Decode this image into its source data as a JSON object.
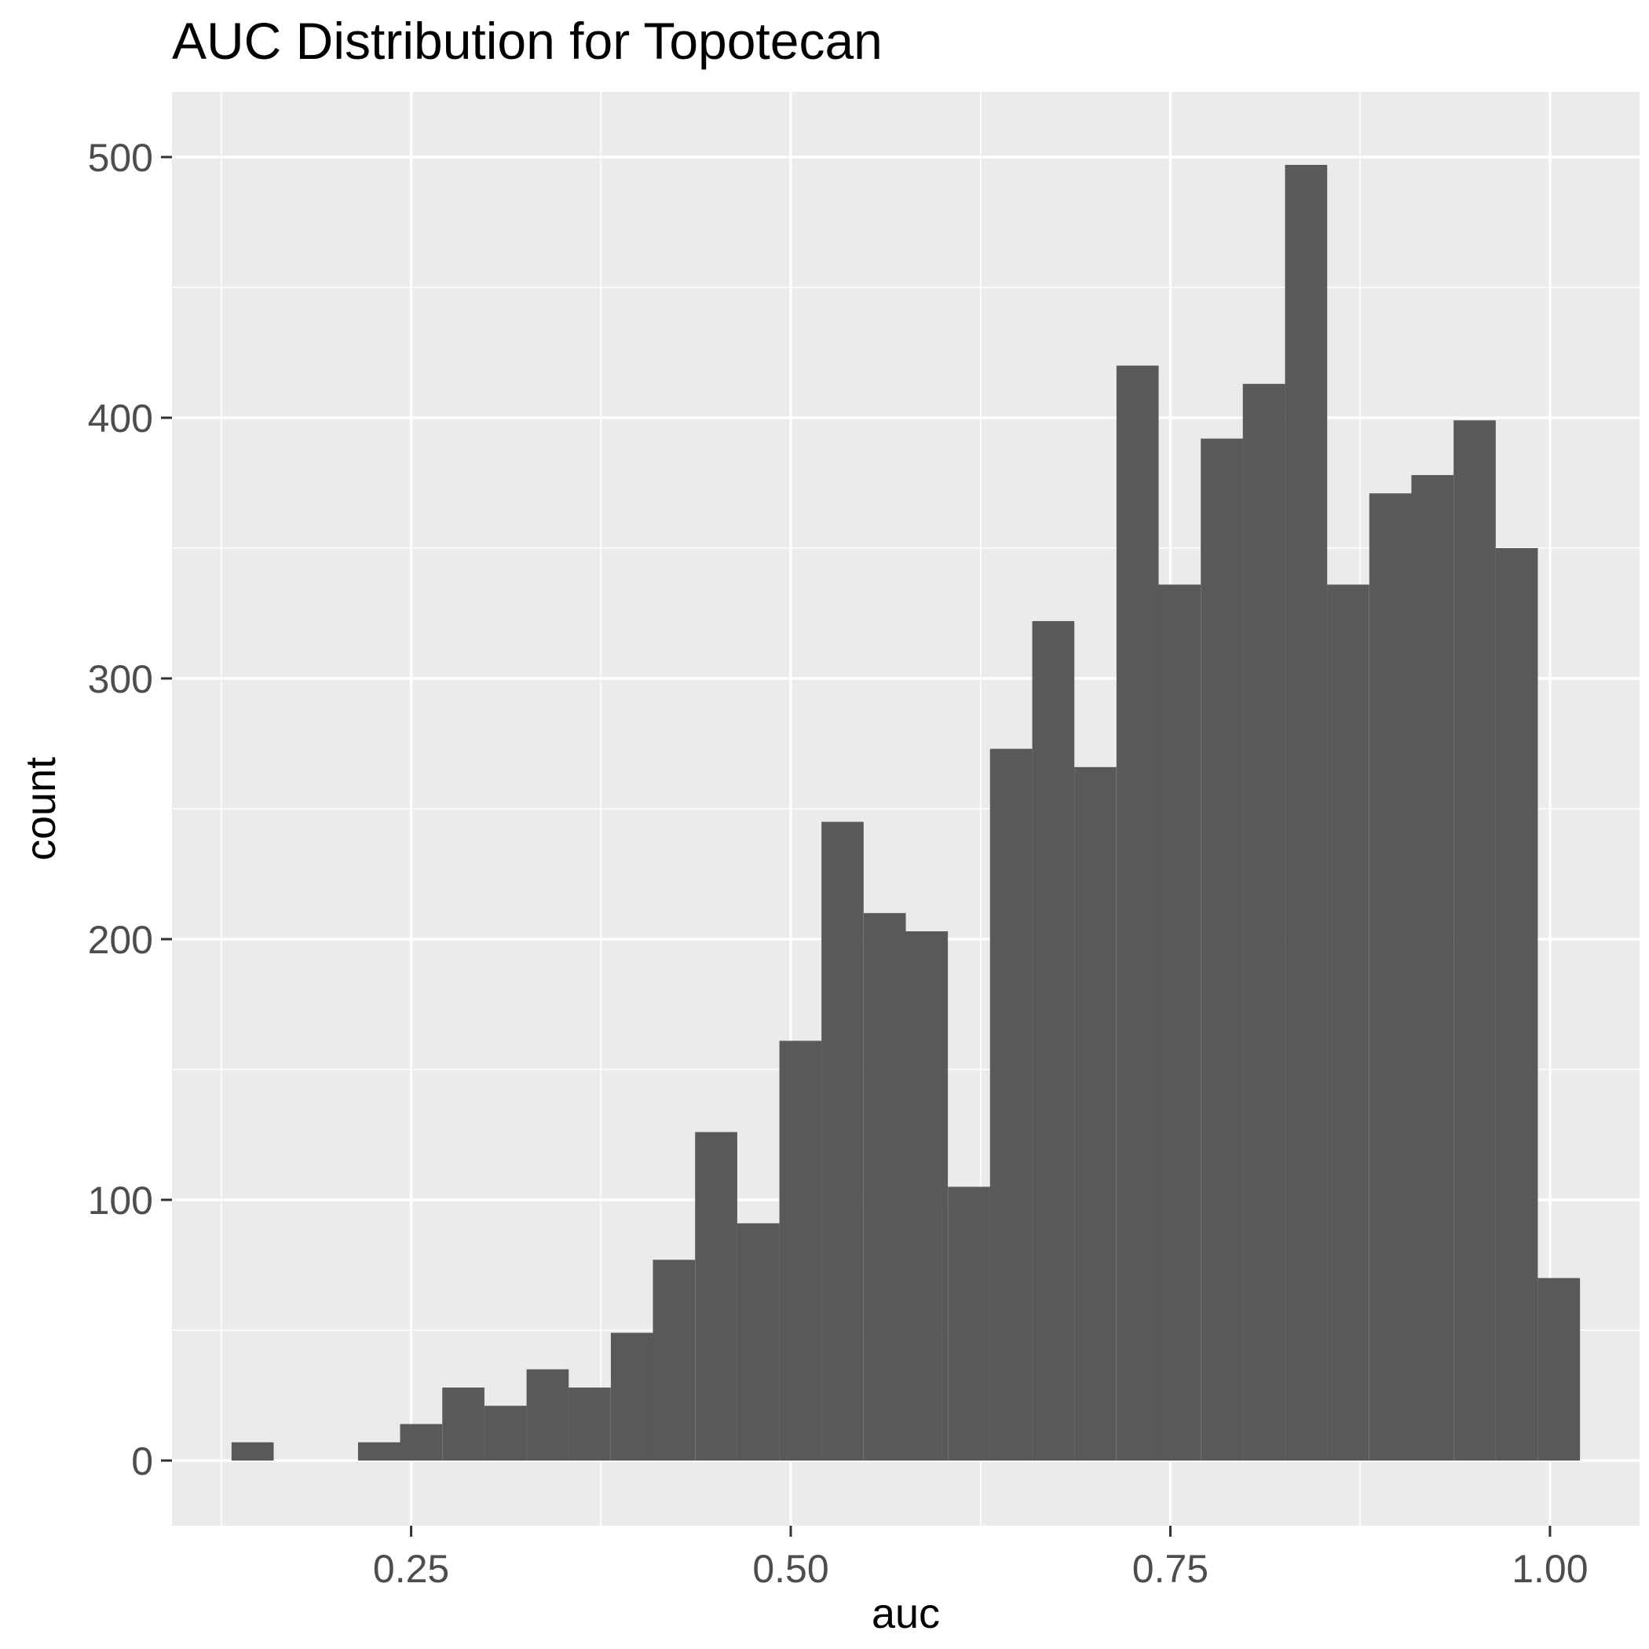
{
  "chart_data": {
    "type": "bar",
    "title": "AUC Distribution for Topotecan",
    "xlabel": "auc",
    "ylabel": "count",
    "xlim": [
      0.0925,
      1.059
    ],
    "ylim": [
      -25,
      525
    ],
    "x_ticks": [
      {
        "value": 0.25,
        "label": "0.25"
      },
      {
        "value": 0.5,
        "label": "0.50"
      },
      {
        "value": 0.75,
        "label": "0.75"
      },
      {
        "value": 1.0,
        "label": "1.00"
      }
    ],
    "y_ticks": [
      {
        "value": 0,
        "label": "0"
      },
      {
        "value": 100,
        "label": "100"
      },
      {
        "value": 200,
        "label": "200"
      },
      {
        "value": 300,
        "label": "300"
      },
      {
        "value": 400,
        "label": "400"
      },
      {
        "value": 500,
        "label": "500"
      }
    ],
    "bin_width": 0.02775,
    "bin_centers": [
      0.1456,
      0.1734,
      0.2011,
      0.2289,
      0.2566,
      0.2844,
      0.3121,
      0.3399,
      0.3676,
      0.3954,
      0.4231,
      0.4509,
      0.4786,
      0.5064,
      0.5341,
      0.5619,
      0.5896,
      0.6174,
      0.6451,
      0.6729,
      0.7006,
      0.7284,
      0.7561,
      0.7839,
      0.8116,
      0.8394,
      0.8671,
      0.8949,
      0.9226,
      0.9504,
      0.9781,
      1.0059
    ],
    "values": [
      7,
      0,
      0,
      7,
      14,
      28,
      21,
      35,
      28,
      49,
      77,
      126,
      91,
      161,
      245,
      210,
      203,
      105,
      273,
      322,
      266,
      420,
      336,
      392,
      413,
      497,
      336,
      371,
      378,
      399,
      350,
      70
    ],
    "grid": true,
    "bar_color": "#595959",
    "panel_color": "#ebebeb",
    "grid_color": "#ffffff"
  }
}
